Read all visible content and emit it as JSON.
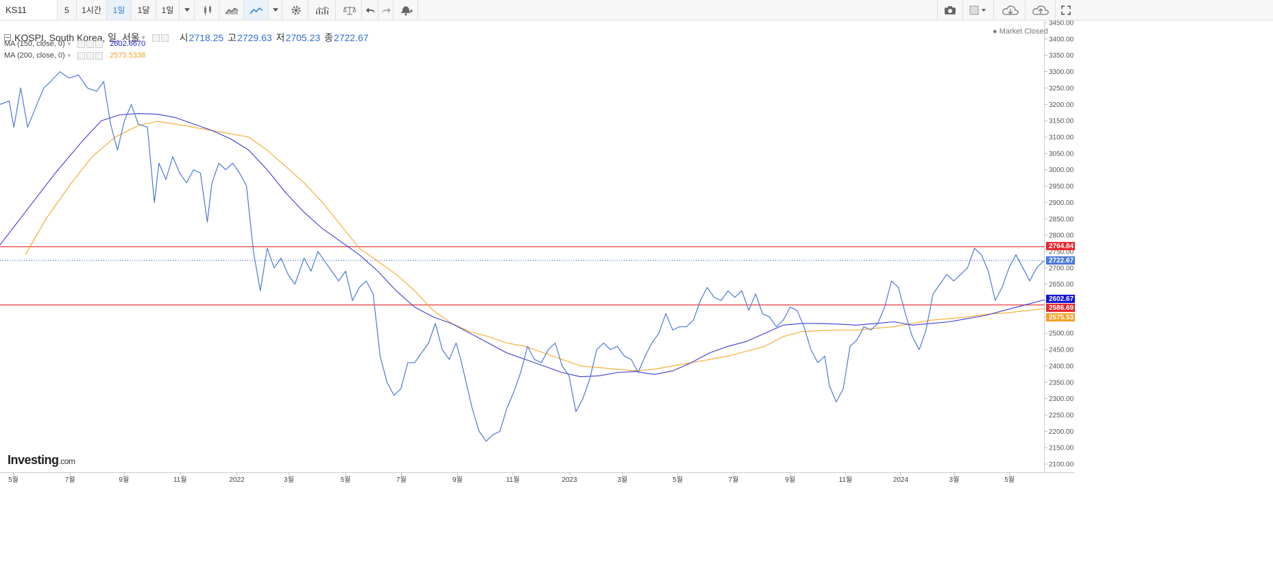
{
  "toolbar": {
    "symbol": "KS11",
    "intervals": [
      "5",
      "1시간",
      "1일",
      "1달",
      "1일"
    ],
    "active_interval_index": 2
  },
  "legend": {
    "instrument": "KOSPI, South Korea, 일, 서울",
    "ohlc": [
      {
        "label": "시",
        "value": "2718.25"
      },
      {
        "label": "고",
        "value": "2729.63"
      },
      {
        "label": "저",
        "value": "2705.23"
      },
      {
        "label": "종",
        "value": "2722.67"
      }
    ],
    "ma150": {
      "label": "MA (150, close, 0)",
      "value": "2602.6670",
      "color": "#1f1fd6"
    },
    "ma200": {
      "label": "MA (200, close, 0)",
      "value": "2575.5338",
      "color": "#f2a02a"
    }
  },
  "market_status": "Market Closed",
  "watermark": {
    "brand": "Investing",
    "suffix": ".com"
  },
  "colors": {
    "price": "#4a78d8",
    "ma150": "#3a3ad6",
    "ma200": "#f5a623",
    "hline": "#e53935",
    "current": "#4a6fd8"
  },
  "price_tags": [
    {
      "value": "2764.84",
      "color": "#e8262d"
    },
    {
      "value": "2722.67",
      "color": "#4a78d8"
    },
    {
      "value": "2602.67",
      "color": "#1414d6"
    },
    {
      "value": "2586.69",
      "color": "#e8262d"
    },
    {
      "value": "2575.53",
      "color": "#f2a02a"
    }
  ],
  "chart_data": {
    "type": "line",
    "title": "KOSPI, South Korea, 일, 서울",
    "ylim": [
      2075,
      3450
    ],
    "y_ticks": [
      2100,
      2150,
      2200,
      2250,
      2300,
      2350,
      2400,
      2450,
      2500,
      2550,
      2600,
      2650,
      2700,
      2750,
      2800,
      2850,
      2900,
      2950,
      3000,
      3050,
      3100,
      3150,
      3200,
      3250,
      3300,
      3350,
      3400,
      3450
    ],
    "x_ticks": [
      {
        "x": 0.029,
        "label": "5월"
      },
      {
        "x": 0.152,
        "label": "7월"
      },
      {
        "x": 0.269,
        "label": "9월"
      },
      {
        "x": 0.391,
        "label": "11월"
      },
      {
        "x": 0.514,
        "label": "2022"
      },
      {
        "x": 0.627,
        "label": "3월"
      },
      {
        "x": 0.75,
        "label": "5월"
      },
      {
        "x": 0.871,
        "label": "7월"
      },
      {
        "x": 0.993,
        "label": "9월"
      },
      {
        "x": 1.113,
        "label": "11월"
      },
      {
        "x": 1.236,
        "label": "2023"
      },
      {
        "x": 1.351,
        "label": "3월"
      },
      {
        "x": 1.471,
        "label": "5월"
      },
      {
        "x": 1.592,
        "label": "7월"
      },
      {
        "x": 1.715,
        "label": "9월"
      },
      {
        "x": 1.835,
        "label": "11월"
      },
      {
        "x": 1.955,
        "label": "2024"
      },
      {
        "x": 2.071,
        "label": "3월"
      },
      {
        "x": 2.191,
        "label": "5월"
      }
    ],
    "x_range_years": [
      0,
      2.266
    ],
    "hlines": [
      2764.84,
      2586.69
    ],
    "current_value": 2722.67,
    "series": [
      {
        "name": "KOSPI",
        "points": [
          [
            0,
            3200
          ],
          [
            0.02,
            3210
          ],
          [
            0.03,
            3130
          ],
          [
            0.045,
            3250
          ],
          [
            0.06,
            3130
          ],
          [
            0.08,
            3200
          ],
          [
            0.095,
            3250
          ],
          [
            0.11,
            3270
          ],
          [
            0.13,
            3300
          ],
          [
            0.15,
            3280
          ],
          [
            0.17,
            3290
          ],
          [
            0.19,
            3250
          ],
          [
            0.21,
            3240
          ],
          [
            0.225,
            3270
          ],
          [
            0.24,
            3140
          ],
          [
            0.255,
            3060
          ],
          [
            0.27,
            3150
          ],
          [
            0.285,
            3200
          ],
          [
            0.3,
            3140
          ],
          [
            0.32,
            3130
          ],
          [
            0.335,
            2900
          ],
          [
            0.345,
            3020
          ],
          [
            0.36,
            2970
          ],
          [
            0.375,
            3040
          ],
          [
            0.39,
            2990
          ],
          [
            0.405,
            2960
          ],
          [
            0.42,
            3000
          ],
          [
            0.435,
            2990
          ],
          [
            0.45,
            2840
          ],
          [
            0.46,
            2960
          ],
          [
            0.475,
            3020
          ],
          [
            0.49,
            3000
          ],
          [
            0.505,
            3020
          ],
          [
            0.52,
            2990
          ],
          [
            0.535,
            2950
          ],
          [
            0.55,
            2750
          ],
          [
            0.565,
            2630
          ],
          [
            0.58,
            2760
          ],
          [
            0.595,
            2700
          ],
          [
            0.61,
            2730
          ],
          [
            0.625,
            2680
          ],
          [
            0.64,
            2650
          ],
          [
            0.66,
            2730
          ],
          [
            0.675,
            2690
          ],
          [
            0.69,
            2750
          ],
          [
            0.705,
            2720
          ],
          [
            0.72,
            2690
          ],
          [
            0.735,
            2660
          ],
          [
            0.75,
            2690
          ],
          [
            0.765,
            2600
          ],
          [
            0.78,
            2640
          ],
          [
            0.795,
            2660
          ],
          [
            0.81,
            2620
          ],
          [
            0.825,
            2430
          ],
          [
            0.84,
            2350
          ],
          [
            0.855,
            2310
          ],
          [
            0.87,
            2330
          ],
          [
            0.885,
            2410
          ],
          [
            0.9,
            2410
          ],
          [
            0.915,
            2440
          ],
          [
            0.93,
            2470
          ],
          [
            0.945,
            2530
          ],
          [
            0.96,
            2450
          ],
          [
            0.975,
            2420
          ],
          [
            0.99,
            2470
          ],
          [
            1.0,
            2420
          ],
          [
            1.01,
            2360
          ],
          [
            1.025,
            2270
          ],
          [
            1.04,
            2200
          ],
          [
            1.055,
            2170
          ],
          [
            1.07,
            2190
          ],
          [
            1.085,
            2200
          ],
          [
            1.1,
            2270
          ],
          [
            1.115,
            2320
          ],
          [
            1.13,
            2380
          ],
          [
            1.145,
            2460
          ],
          [
            1.16,
            2420
          ],
          [
            1.175,
            2410
          ],
          [
            1.19,
            2450
          ],
          [
            1.205,
            2470
          ],
          [
            1.22,
            2400
          ],
          [
            1.235,
            2370
          ],
          [
            1.25,
            2260
          ],
          [
            1.265,
            2300
          ],
          [
            1.28,
            2360
          ],
          [
            1.295,
            2450
          ],
          [
            1.31,
            2470
          ],
          [
            1.325,
            2450
          ],
          [
            1.34,
            2460
          ],
          [
            1.355,
            2430
          ],
          [
            1.37,
            2420
          ],
          [
            1.385,
            2380
          ],
          [
            1.4,
            2430
          ],
          [
            1.415,
            2470
          ],
          [
            1.43,
            2500
          ],
          [
            1.445,
            2560
          ],
          [
            1.46,
            2510
          ],
          [
            1.475,
            2520
          ],
          [
            1.49,
            2520
          ],
          [
            1.505,
            2540
          ],
          [
            1.52,
            2600
          ],
          [
            1.535,
            2640
          ],
          [
            1.55,
            2610
          ],
          [
            1.565,
            2600
          ],
          [
            1.58,
            2630
          ],
          [
            1.595,
            2610
          ],
          [
            1.61,
            2630
          ],
          [
            1.625,
            2570
          ],
          [
            1.64,
            2620
          ],
          [
            1.655,
            2560
          ],
          [
            1.67,
            2550
          ],
          [
            1.685,
            2520
          ],
          [
            1.7,
            2540
          ],
          [
            1.715,
            2580
          ],
          [
            1.73,
            2570
          ],
          [
            1.745,
            2520
          ],
          [
            1.76,
            2450
          ],
          [
            1.775,
            2410
          ],
          [
            1.79,
            2430
          ],
          [
            1.8,
            2340
          ],
          [
            1.815,
            2290
          ],
          [
            1.83,
            2330
          ],
          [
            1.845,
            2460
          ],
          [
            1.86,
            2480
          ],
          [
            1.875,
            2520
          ],
          [
            1.89,
            2510
          ],
          [
            1.905,
            2530
          ],
          [
            1.92,
            2580
          ],
          [
            1.935,
            2660
          ],
          [
            1.95,
            2640
          ],
          [
            1.965,
            2560
          ],
          [
            1.98,
            2490
          ],
          [
            1.995,
            2450
          ],
          [
            2.01,
            2510
          ],
          [
            2.025,
            2620
          ],
          [
            2.04,
            2650
          ],
          [
            2.055,
            2680
          ],
          [
            2.07,
            2660
          ],
          [
            2.085,
            2680
          ],
          [
            2.1,
            2700
          ],
          [
            2.115,
            2760
          ],
          [
            2.13,
            2740
          ],
          [
            2.145,
            2690
          ],
          [
            2.16,
            2600
          ],
          [
            2.175,
            2640
          ],
          [
            2.19,
            2700
          ],
          [
            2.205,
            2740
          ],
          [
            2.22,
            2700
          ],
          [
            2.235,
            2660
          ],
          [
            2.25,
            2700
          ],
          [
            2.266,
            2722
          ]
        ]
      },
      {
        "name": "MA (150, close, 0)",
        "points": [
          [
            0,
            2770
          ],
          [
            0.06,
            2880
          ],
          [
            0.12,
            2990
          ],
          [
            0.18,
            3090
          ],
          [
            0.22,
            3150
          ],
          [
            0.26,
            3168
          ],
          [
            0.3,
            3172
          ],
          [
            0.34,
            3170
          ],
          [
            0.38,
            3160
          ],
          [
            0.42,
            3140
          ],
          [
            0.46,
            3120
          ],
          [
            0.5,
            3095
          ],
          [
            0.54,
            3060
          ],
          [
            0.58,
            3000
          ],
          [
            0.62,
            2930
          ],
          [
            0.66,
            2870
          ],
          [
            0.7,
            2820
          ],
          [
            0.74,
            2780
          ],
          [
            0.78,
            2740
          ],
          [
            0.82,
            2690
          ],
          [
            0.86,
            2630
          ],
          [
            0.9,
            2580
          ],
          [
            0.94,
            2550
          ],
          [
            0.98,
            2530
          ],
          [
            1.02,
            2500
          ],
          [
            1.06,
            2470
          ],
          [
            1.1,
            2440
          ],
          [
            1.14,
            2420
          ],
          [
            1.18,
            2400
          ],
          [
            1.22,
            2380
          ],
          [
            1.26,
            2367
          ],
          [
            1.3,
            2370
          ],
          [
            1.34,
            2380
          ],
          [
            1.38,
            2383
          ],
          [
            1.42,
            2374
          ],
          [
            1.46,
            2385
          ],
          [
            1.5,
            2410
          ],
          [
            1.54,
            2440
          ],
          [
            1.58,
            2460
          ],
          [
            1.62,
            2475
          ],
          [
            1.66,
            2500
          ],
          [
            1.7,
            2525
          ],
          [
            1.74,
            2530
          ],
          [
            1.78,
            2530
          ],
          [
            1.82,
            2528
          ],
          [
            1.86,
            2525
          ],
          [
            1.9,
            2530
          ],
          [
            1.94,
            2535
          ],
          [
            1.98,
            2525
          ],
          [
            2.02,
            2530
          ],
          [
            2.06,
            2535
          ],
          [
            2.1,
            2545
          ],
          [
            2.14,
            2555
          ],
          [
            2.18,
            2570
          ],
          [
            2.22,
            2585
          ],
          [
            2.266,
            2602
          ]
        ]
      },
      {
        "name": "MA (200, close, 0)",
        "points": [
          [
            0.055,
            2740
          ],
          [
            0.1,
            2850
          ],
          [
            0.15,
            2950
          ],
          [
            0.2,
            3040
          ],
          [
            0.25,
            3100
          ],
          [
            0.3,
            3135
          ],
          [
            0.34,
            3148
          ],
          [
            0.38,
            3140
          ],
          [
            0.42,
            3130
          ],
          [
            0.46,
            3120
          ],
          [
            0.5,
            3110
          ],
          [
            0.54,
            3100
          ],
          [
            0.58,
            3060
          ],
          [
            0.62,
            3010
          ],
          [
            0.66,
            2960
          ],
          [
            0.7,
            2900
          ],
          [
            0.74,
            2830
          ],
          [
            0.78,
            2760
          ],
          [
            0.82,
            2720
          ],
          [
            0.86,
            2680
          ],
          [
            0.9,
            2630
          ],
          [
            0.94,
            2570
          ],
          [
            0.98,
            2530
          ],
          [
            1.02,
            2505
          ],
          [
            1.06,
            2490
          ],
          [
            1.1,
            2470
          ],
          [
            1.14,
            2460
          ],
          [
            1.18,
            2440
          ],
          [
            1.22,
            2420
          ],
          [
            1.26,
            2400
          ],
          [
            1.3,
            2395
          ],
          [
            1.34,
            2390
          ],
          [
            1.38,
            2385
          ],
          [
            1.42,
            2390
          ],
          [
            1.46,
            2400
          ],
          [
            1.5,
            2410
          ],
          [
            1.54,
            2420
          ],
          [
            1.58,
            2430
          ],
          [
            1.62,
            2445
          ],
          [
            1.66,
            2460
          ],
          [
            1.7,
            2490
          ],
          [
            1.74,
            2505
          ],
          [
            1.78,
            2508
          ],
          [
            1.82,
            2510
          ],
          [
            1.86,
            2510
          ],
          [
            1.9,
            2515
          ],
          [
            1.94,
            2520
          ],
          [
            1.98,
            2530
          ],
          [
            2.02,
            2540
          ],
          [
            2.06,
            2545
          ],
          [
            2.1,
            2550
          ],
          [
            2.14,
            2558
          ],
          [
            2.18,
            2562
          ],
          [
            2.22,
            2568
          ],
          [
            2.266,
            2575
          ]
        ]
      }
    ]
  }
}
